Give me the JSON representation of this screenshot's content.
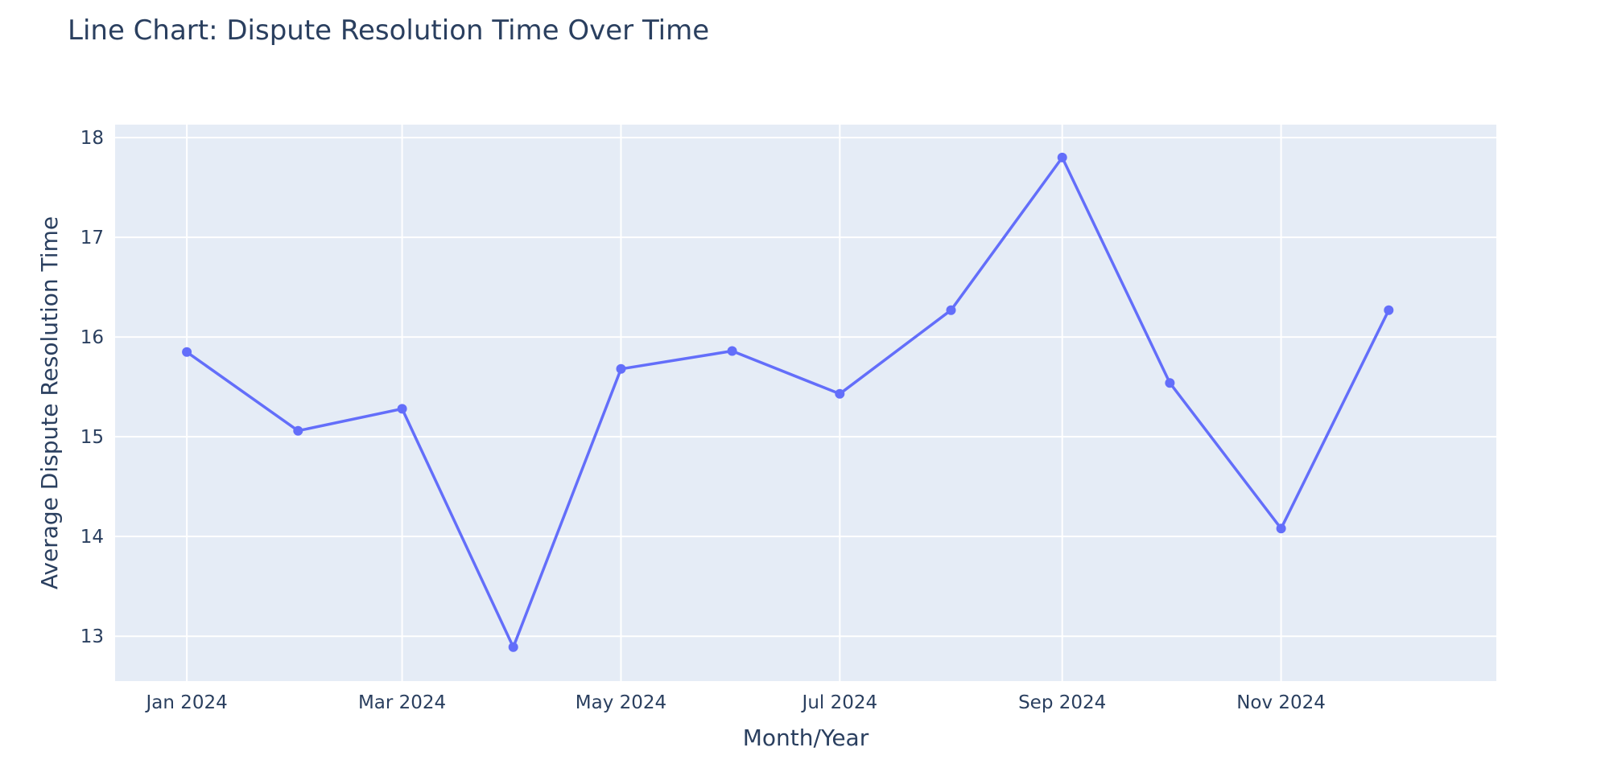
{
  "chart_data": {
    "type": "line",
    "title": "Line Chart: Dispute Resolution Time Over Time",
    "xlabel": "Month/Year",
    "ylabel": "Average Dispute Resolution Time",
    "x": [
      "2024-01-01",
      "2024-02-01",
      "2024-03-01",
      "2024-04-01",
      "2024-05-01",
      "2024-06-01",
      "2024-07-01",
      "2024-08-01",
      "2024-09-01",
      "2024-10-01",
      "2024-11-01",
      "2024-12-01"
    ],
    "series": [
      {
        "values": [
          15.85,
          15.06,
          15.28,
          12.89,
          15.68,
          15.86,
          15.43,
          16.27,
          17.8,
          15.54,
          14.08,
          16.27
        ]
      }
    ],
    "x_ticks": [
      "Jan 2024",
      "Mar 2024",
      "May 2024",
      "Jul 2024",
      "Sep 2024",
      "Nov 2024"
    ],
    "y_ticks": [
      "13",
      "14",
      "15",
      "16",
      "17",
      "18"
    ],
    "ylim": [
      12.55,
      18.13
    ],
    "xlim": [
      "2023-12-12",
      "2024-12-31"
    ],
    "grid": true,
    "line_color": "#636efa",
    "plot_background": "#e5ecf6",
    "grid_color": "#ffffff"
  }
}
